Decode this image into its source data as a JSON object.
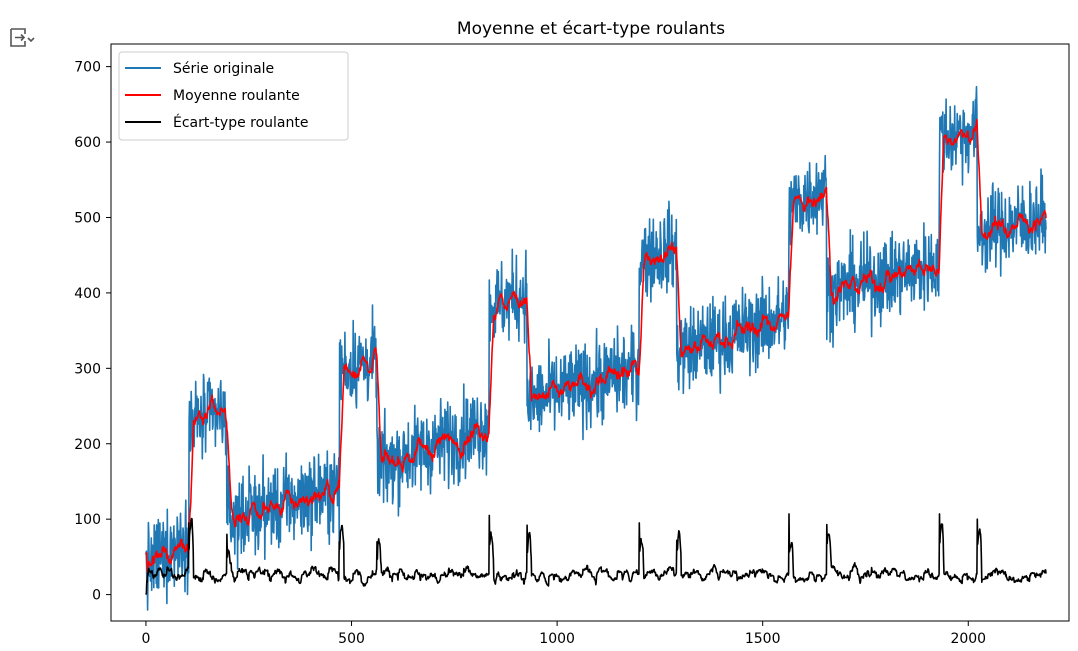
{
  "output_icon": "output-collapse-icon",
  "chart_data": {
    "type": "line",
    "title": "Moyenne et écart-type roulants",
    "xlabel": "",
    "ylabel": "",
    "xlim": [
      -85,
      2245
    ],
    "ylim": [
      -35,
      730
    ],
    "xticks": [
      0,
      500,
      1000,
      1500,
      2000
    ],
    "yticks": [
      0,
      100,
      200,
      300,
      400,
      500,
      600,
      700
    ],
    "grid": false,
    "legend_position": "top-left",
    "n_points": 2190,
    "segments": [
      {
        "start": 0,
        "end": 104,
        "level_start": 35,
        "level_end": 80
      },
      {
        "start": 105,
        "end": 196,
        "level_start": 228,
        "level_end": 240
      },
      {
        "start": 197,
        "end": 470,
        "level_start": 100,
        "level_end": 140
      },
      {
        "start": 471,
        "end": 561,
        "level_start": 300,
        "level_end": 310
      },
      {
        "start": 562,
        "end": 834,
        "level_start": 170,
        "level_end": 225
      },
      {
        "start": 835,
        "end": 926,
        "level_start": 380,
        "level_end": 400
      },
      {
        "start": 927,
        "end": 1199,
        "level_start": 255,
        "level_end": 300
      },
      {
        "start": 1200,
        "end": 1290,
        "level_start": 445,
        "level_end": 460
      },
      {
        "start": 1291,
        "end": 1563,
        "level_start": 320,
        "level_end": 370
      },
      {
        "start": 1564,
        "end": 1655,
        "level_start": 515,
        "level_end": 540
      },
      {
        "start": 1656,
        "end": 1929,
        "level_start": 400,
        "level_end": 440
      },
      {
        "start": 1930,
        "end": 2021,
        "level_start": 605,
        "level_end": 615
      },
      {
        "start": 2022,
        "end": 2189,
        "level_start": 480,
        "level_end": 500
      }
    ],
    "std_spikes": [
      {
        "x": 104,
        "y": 95
      },
      {
        "x": 197,
        "y": 80
      },
      {
        "x": 470,
        "y": 70
      },
      {
        "x": 562,
        "y": 70
      },
      {
        "x": 835,
        "y": 105
      },
      {
        "x": 927,
        "y": 92
      },
      {
        "x": 1200,
        "y": 95
      },
      {
        "x": 1291,
        "y": 72
      },
      {
        "x": 1564,
        "y": 107
      },
      {
        "x": 1656,
        "y": 93
      },
      {
        "x": 1930,
        "y": 107
      },
      {
        "x": 2022,
        "y": 100
      }
    ],
    "series": [
      {
        "name": "Série originale",
        "color": "#1f77b4",
        "noise": 28
      },
      {
        "name": "Moyenne roulante",
        "color": "#ff0000",
        "window": 12
      },
      {
        "name": "Écart-type roulante",
        "color": "#000000",
        "level": 28
      }
    ]
  }
}
